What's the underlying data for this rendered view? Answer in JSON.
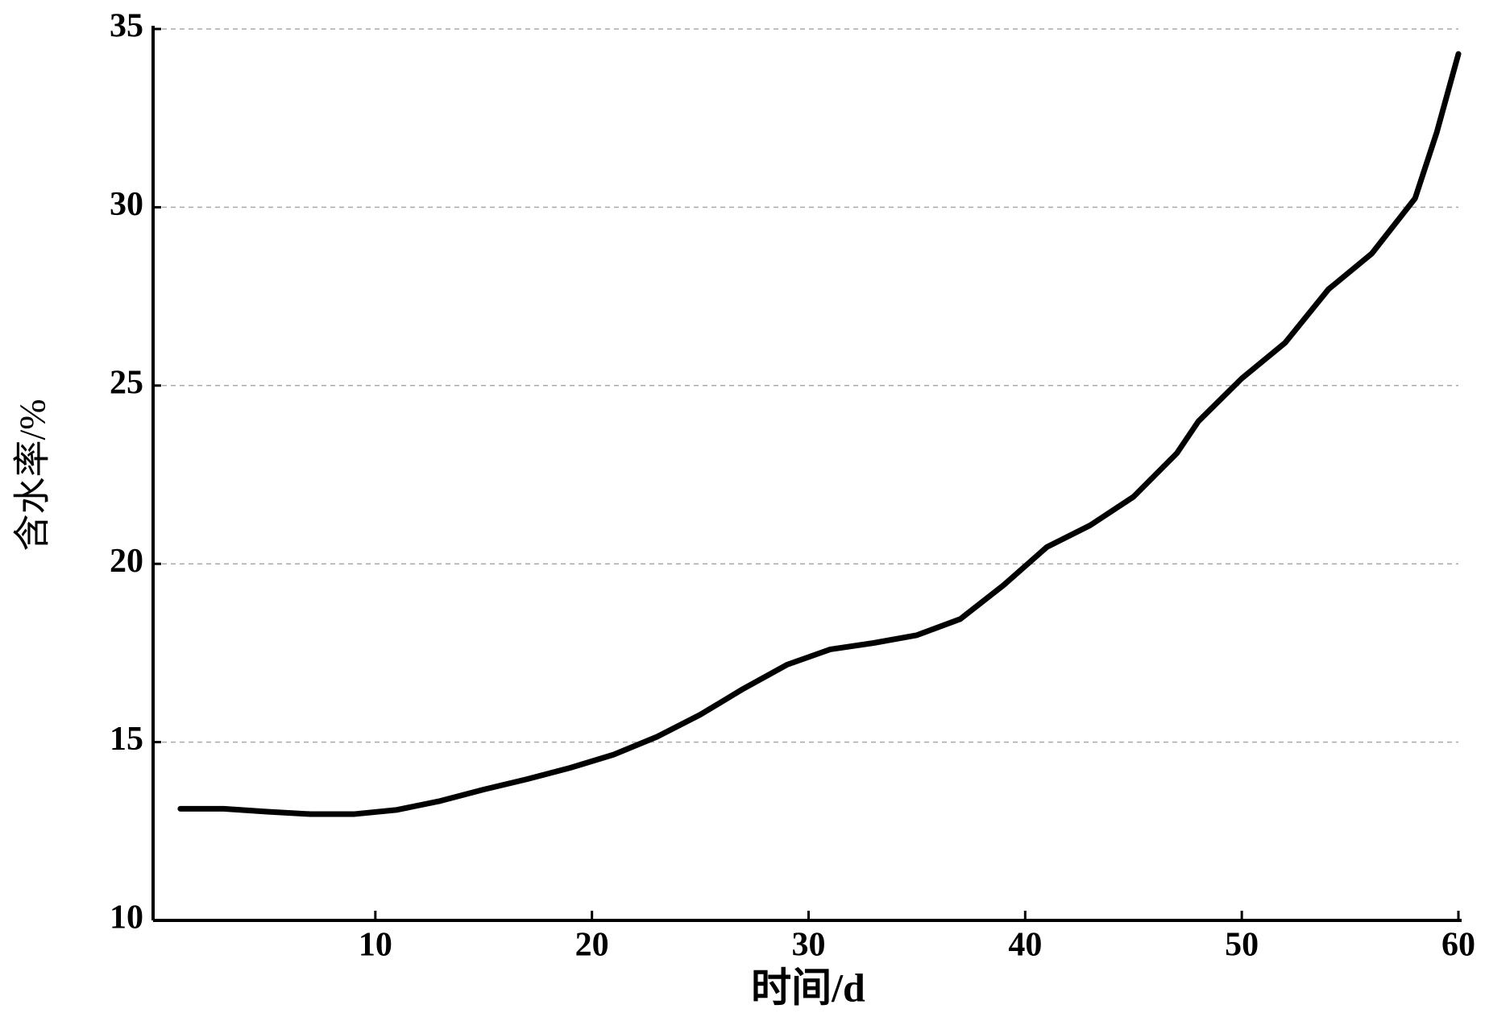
{
  "chart_data": {
    "type": "line",
    "x_label": "时间/d",
    "y_label": "含水率/%",
    "x": [
      1,
      3,
      5,
      7,
      9,
      11,
      13,
      15,
      17,
      19,
      21,
      23,
      25,
      27,
      29,
      31,
      33,
      35,
      37,
      39,
      41,
      43,
      45,
      47,
      48,
      50,
      52,
      54,
      56,
      58,
      59,
      60
    ],
    "values": [
      13.13,
      13.13,
      13.05,
      12.98,
      12.98,
      13.1,
      13.35,
      13.67,
      13.96,
      14.28,
      14.65,
      15.15,
      15.77,
      16.5,
      17.17,
      17.6,
      17.78,
      18.0,
      18.45,
      19.4,
      20.47,
      21.08,
      21.88,
      23.1,
      24.0,
      25.2,
      26.2,
      27.7,
      28.7,
      30.25,
      32.1,
      34.3
    ],
    "color": "#000000",
    "xlim": [
      0,
      60
    ],
    "xticks": [
      10,
      20,
      30,
      40,
      50,
      60
    ],
    "ylim": [
      10,
      35
    ],
    "yticks": [
      10,
      15,
      20,
      25,
      30,
      35
    ],
    "grid": true
  }
}
